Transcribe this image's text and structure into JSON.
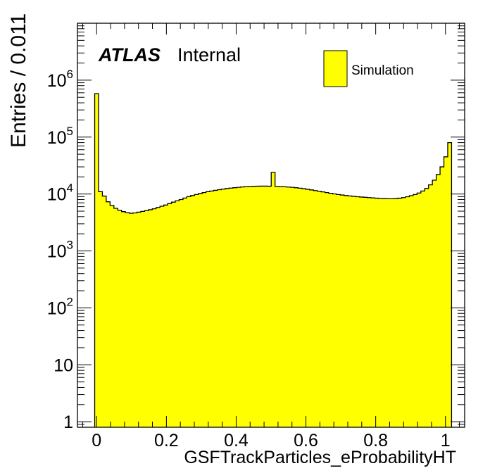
{
  "chart_data": {
    "type": "histogram",
    "xlabel": "GSFTrackParticles_eProbabilityHT",
    "ylabel": "Entries / 0.011",
    "atlas_label": "ATLAS",
    "atlas_status": "Internal",
    "legend": {
      "label": "Simulation",
      "position": "top-right"
    },
    "fill_color": "#ffff00",
    "edge_color": "#000000",
    "y_scale": "log",
    "xlim": [
      -0.055,
      1.055
    ],
    "ylim": [
      0.8,
      10000000
    ],
    "x_ticks": [
      {
        "value": 0,
        "label": "0"
      },
      {
        "value": 0.2,
        "label": "0.2"
      },
      {
        "value": 0.4,
        "label": "0.4"
      },
      {
        "value": 0.6,
        "label": "0.6"
      },
      {
        "value": 0.8,
        "label": "0.8"
      },
      {
        "value": 1,
        "label": "1"
      }
    ],
    "y_ticks": [
      {
        "value": 1,
        "base": "1",
        "exp": ""
      },
      {
        "value": 10,
        "base": "10",
        "exp": ""
      },
      {
        "value": 100,
        "base": "10",
        "exp": "2"
      },
      {
        "value": 1000,
        "base": "10",
        "exp": "3"
      },
      {
        "value": 10000,
        "base": "10",
        "exp": "4"
      },
      {
        "value": 100000,
        "base": "10",
        "exp": "5"
      },
      {
        "value": 1000000,
        "base": "10",
        "exp": "6"
      }
    ],
    "bin_start": -0.0055,
    "bin_width": 0.011,
    "values": [
      580000,
      11000,
      9200,
      7300,
      6300,
      5600,
      5200,
      4900,
      4700,
      4600,
      4650,
      4800,
      4950,
      5100,
      5300,
      5500,
      5800,
      6100,
      6400,
      6800,
      7200,
      7600,
      8000,
      8500,
      9000,
      9400,
      9800,
      10200,
      10600,
      11000,
      11300,
      11600,
      11900,
      12200,
      12500,
      12700,
      12900,
      13100,
      13300,
      13450,
      13550,
      13650,
      13700,
      13750,
      13750,
      13700,
      24000,
      13600,
      13500,
      13400,
      13250,
      13100,
      12900,
      12650,
      12400,
      12100,
      11800,
      11500,
      11200,
      10900,
      10600,
      10300,
      10050,
      9800,
      9600,
      9400,
      9250,
      9100,
      8950,
      8850,
      8750,
      8650,
      8550,
      8450,
      8350,
      8300,
      8250,
      8250,
      8300,
      8450,
      8650,
      8950,
      9350,
      9800,
      10400,
      11300,
      12500,
      14500,
      17500,
      22000,
      30000,
      45000,
      80000
    ]
  }
}
